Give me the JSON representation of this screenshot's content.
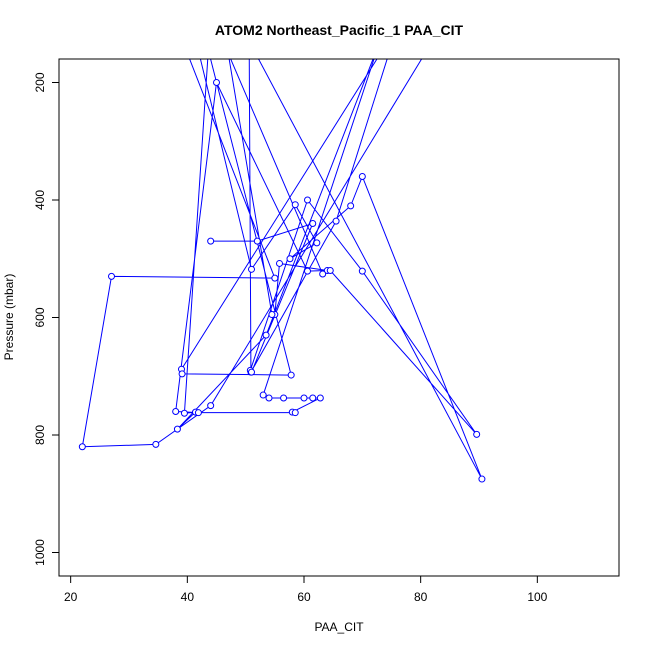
{
  "chart_data": {
    "type": "line",
    "title": "ATOM2 Northeast_Pacific_1 PAA_CIT",
    "xlabel": "PAA_CIT",
    "ylabel": "Pressure (mbar)",
    "xlim": [
      18,
      114
    ],
    "ylim": [
      1040,
      160
    ],
    "y_inverted": true,
    "grid": false,
    "x_ticks": [
      20,
      40,
      60,
      80,
      100
    ],
    "y_ticks": [
      200,
      400,
      600,
      800,
      1000
    ],
    "colors": {
      "series": "#0000ff",
      "axes": "#000000"
    },
    "series": [
      {
        "x": [
          40.0,
          55.0,
          27.0,
          22.0,
          34.6,
          44.0,
          82.0,
          42.0,
          51.0,
          58.5,
          62.2,
          57.6,
          68.0,
          70.0,
          90.5,
          50.6,
          50.9,
          65.5,
          76.0,
          39.0,
          39.1,
          57.8,
          43.6,
          39.5,
          41.4,
          38.3,
          53.5,
          73.0,
          53.0,
          54.0,
          56.5,
          60.0,
          61.5,
          62.8,
          58.0,
          58.5,
          41.9,
          38.0,
          45.0,
          60.6,
          64.0,
          55.8,
          55.0,
          54.5,
          47.0,
          63.2,
          64.5,
          89.6,
          70.0,
          60.6,
          50.8,
          51.0,
          61.5,
          52.0,
          44.0
        ],
        "y": [
          150,
          533,
          530,
          820,
          816,
          750,
          130,
          150,
          518,
          408,
          473,
          500,
          410,
          360,
          875,
          130,
          693,
          436,
          105,
          688,
          696,
          698,
          145,
          763,
          761,
          790,
          630,
          130,
          732,
          737,
          737,
          737,
          737,
          737,
          761,
          762,
          762,
          760,
          200,
          521,
          520,
          508,
          595,
          595,
          150,
          526,
          520,
          799,
          521,
          400,
          690,
          693,
          440,
          470,
          470
        ]
      }
    ]
  }
}
